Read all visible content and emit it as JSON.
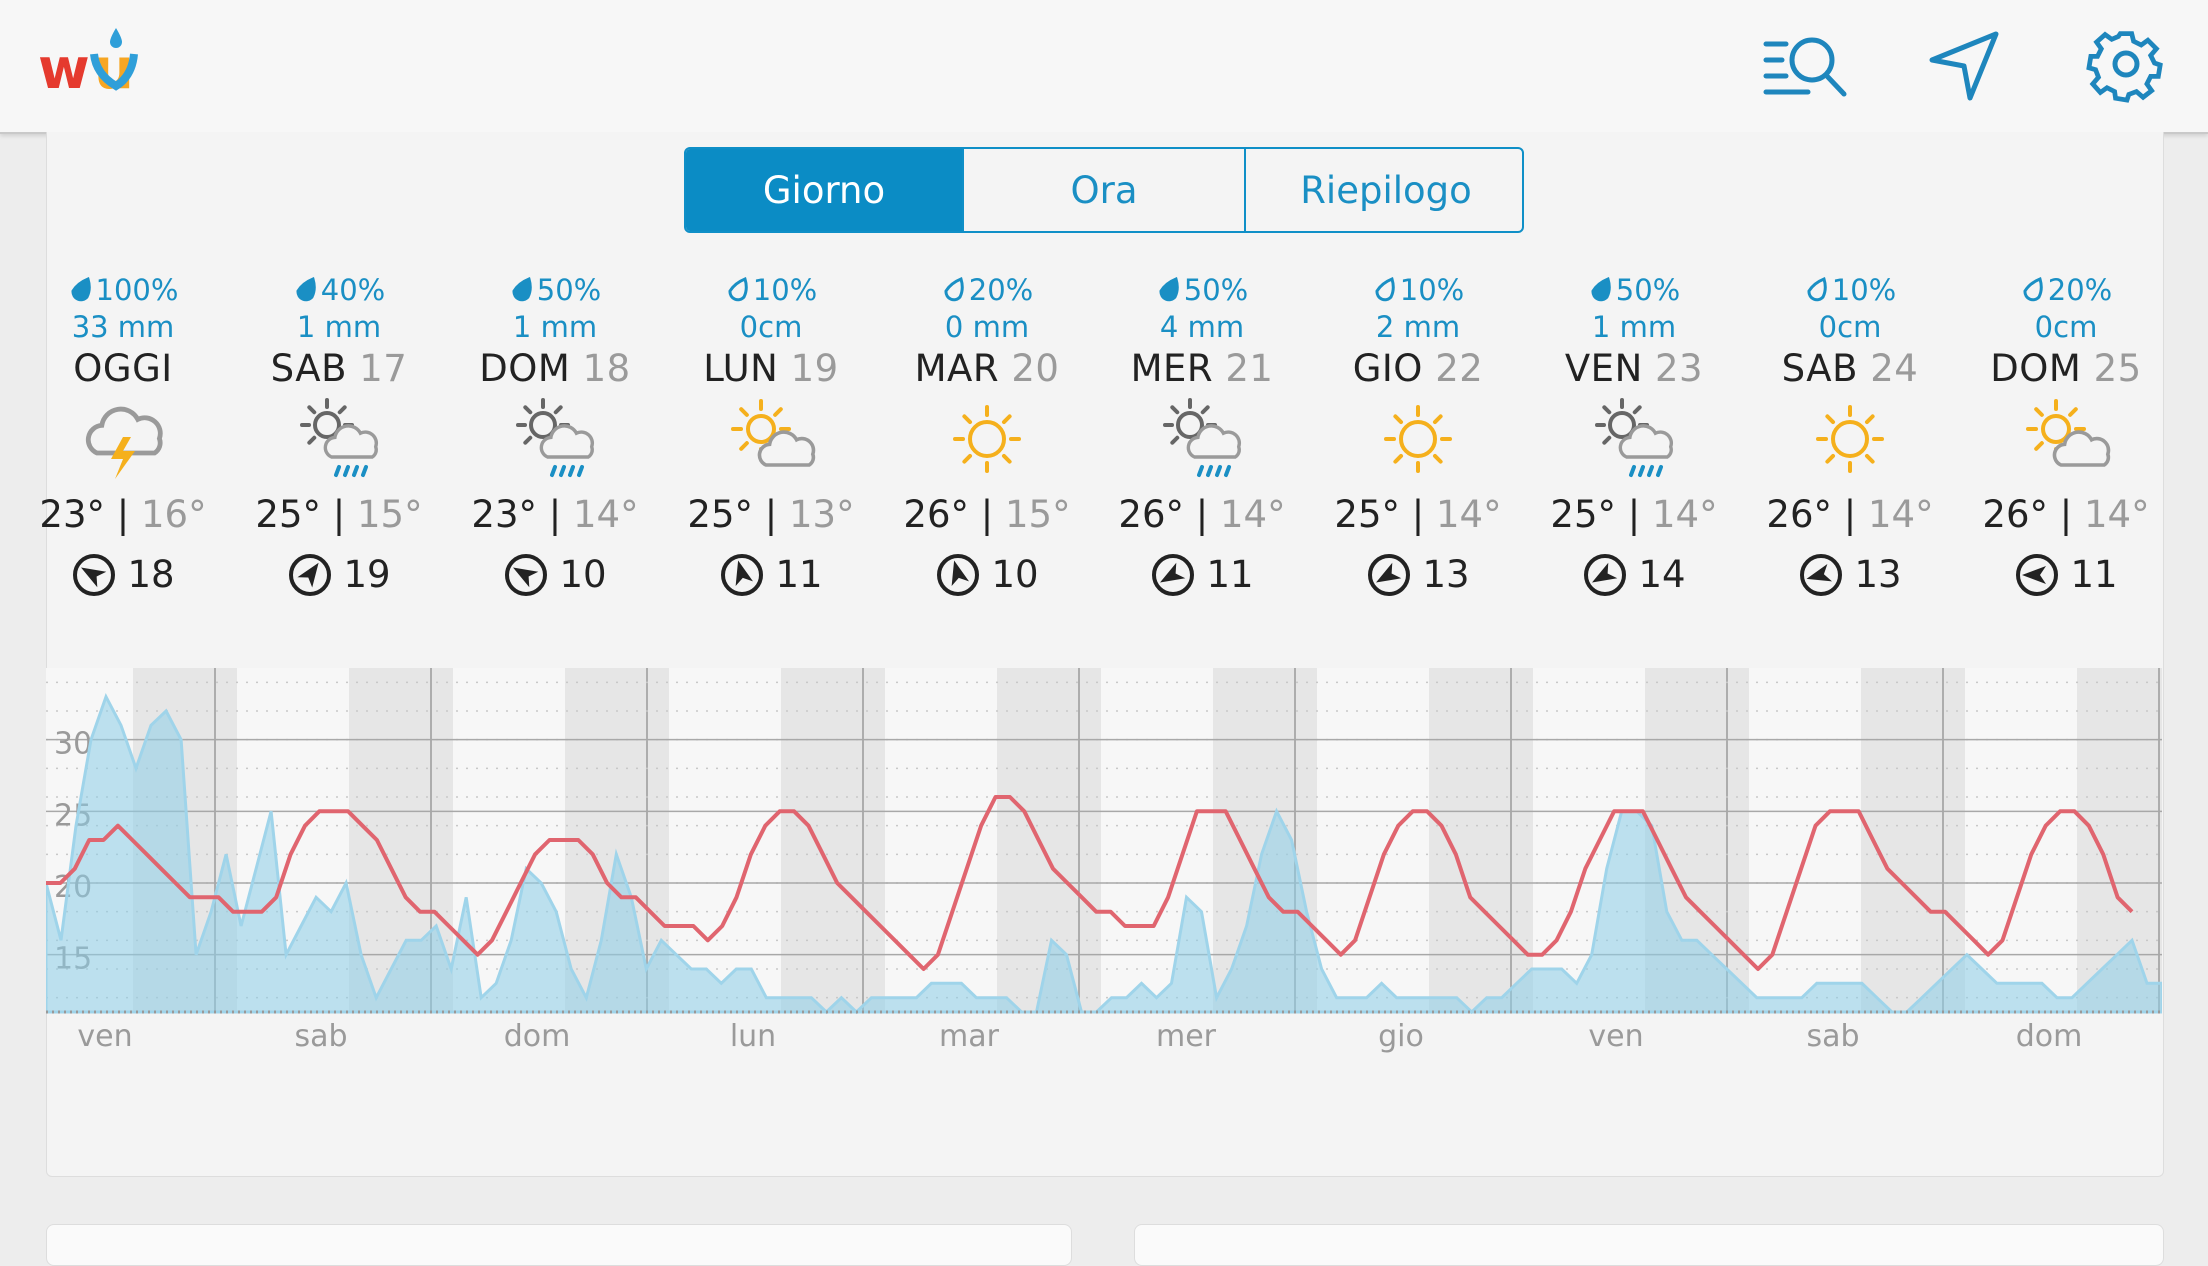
{
  "app": {
    "name": "Weather Underground",
    "logo_text": "wu"
  },
  "toolbar": {
    "icons": [
      "search-list-icon",
      "location-arrow-icon",
      "gear-icon"
    ]
  },
  "tabs": [
    {
      "label": "Giorno",
      "active": true
    },
    {
      "label": "Ora",
      "active": false
    },
    {
      "label": "Riepilogo",
      "active": false
    }
  ],
  "days": [
    {
      "precip": "100%",
      "amount": "33 mm",
      "name": "OGGI",
      "num": "",
      "icon": "thunderstorm-icon",
      "hi": "23°",
      "lo": "16°",
      "wind": "18",
      "wind_dir": 300,
      "drop_filled": true
    },
    {
      "precip": "40%",
      "amount": "1 mm",
      "name": "SAB",
      "num": "17",
      "icon": "sun-cloud-rain-icon",
      "hi": "25°",
      "lo": "15°",
      "wind": "19",
      "wind_dir": 35,
      "drop_filled": true
    },
    {
      "precip": "50%",
      "amount": "1 mm",
      "name": "DOM",
      "num": "18",
      "icon": "sun-cloud-rain-icon",
      "hi": "23°",
      "lo": "14°",
      "wind": "10",
      "wind_dir": 300,
      "drop_filled": true
    },
    {
      "precip": "10%",
      "amount": "0cm",
      "name": "LUN",
      "num": "19",
      "icon": "partly-cloudy-icon",
      "hi": "25°",
      "lo": "13°",
      "wind": "11",
      "wind_dir": 345,
      "drop_filled": false
    },
    {
      "precip": "20%",
      "amount": "0 mm",
      "name": "MAR",
      "num": "20",
      "icon": "sun-icon",
      "hi": "26°",
      "lo": "15°",
      "wind": "10",
      "wind_dir": 345,
      "drop_filled": false
    },
    {
      "precip": "50%",
      "amount": "4 mm",
      "name": "MER",
      "num": "21",
      "icon": "sun-cloud-rain-icon",
      "hi": "26°",
      "lo": "14°",
      "wind": "11",
      "wind_dir": 240,
      "drop_filled": true
    },
    {
      "precip": "10%",
      "amount": "2 mm",
      "name": "GIO",
      "num": "22",
      "icon": "sun-icon",
      "hi": "25°",
      "lo": "14°",
      "wind": "13",
      "wind_dir": 240,
      "drop_filled": false
    },
    {
      "precip": "50%",
      "amount": "1 mm",
      "name": "VEN",
      "num": "23",
      "icon": "sun-cloud-rain-icon",
      "hi": "25°",
      "lo": "14°",
      "wind": "14",
      "wind_dir": 240,
      "drop_filled": true
    },
    {
      "precip": "10%",
      "amount": "0cm",
      "name": "SAB",
      "num": "24",
      "icon": "sun-icon",
      "hi": "26°",
      "lo": "14°",
      "wind": "13",
      "wind_dir": 255,
      "drop_filled": false
    },
    {
      "precip": "20%",
      "amount": "0cm",
      "name": "DOM",
      "num": "25",
      "icon": "partly-cloudy-icon",
      "hi": "26°",
      "lo": "14°",
      "wind": "11",
      "wind_dir": 270,
      "drop_filled": false
    }
  ],
  "chart_data": {
    "type": "line",
    "y_ticks": [
      "30",
      "25",
      "20",
      "15"
    ],
    "ylim": [
      11,
      35
    ],
    "x_labels": [
      "ven",
      "sab",
      "dom",
      "lun",
      "mar",
      "mer",
      "gio",
      "ven",
      "sab",
      "dom"
    ],
    "series": [
      {
        "name": "",
        "kind": "temperature",
        "color": "#e0656f",
        "values": [
          20,
          20,
          21,
          23,
          23,
          24,
          23,
          22,
          21,
          20,
          19,
          19,
          19,
          18,
          18,
          18,
          19,
          22,
          24,
          25,
          25,
          25,
          24,
          23,
          21,
          19,
          18,
          18,
          17,
          16,
          15,
          16,
          18,
          20,
          22,
          23,
          23,
          23,
          22,
          20,
          19,
          19,
          18,
          17,
          17,
          17,
          16,
          17,
          19,
          22,
          24,
          25,
          25,
          24,
          22,
          20,
          19,
          18,
          17,
          16,
          15,
          14,
          15,
          18,
          21,
          24,
          26,
          26,
          25,
          23,
          21,
          20,
          19,
          18,
          18,
          17,
          17,
          17,
          19,
          22,
          25,
          25,
          25,
          23,
          21,
          19,
          18,
          18,
          17,
          16,
          15,
          16,
          19,
          22,
          24,
          25,
          25,
          24,
          22,
          19,
          18,
          17,
          16,
          15,
          15,
          16,
          18,
          21,
          23,
          25,
          25,
          25,
          23,
          21,
          19,
          18,
          17,
          16,
          15,
          14,
          15,
          18,
          21,
          24,
          25,
          25,
          25,
          23,
          21,
          20,
          19,
          18,
          18,
          17,
          16,
          15,
          16,
          19,
          22,
          24,
          25,
          25,
          24,
          22,
          19,
          18
        ]
      },
      {
        "name": "",
        "kind": "precipitation",
        "color": "#a8d8ec",
        "values": [
          20,
          16,
          24,
          30,
          33,
          31,
          28,
          31,
          32,
          30,
          15,
          18,
          22,
          17,
          21,
          25,
          15,
          17,
          19,
          18,
          20,
          15,
          12,
          14,
          16,
          16,
          17,
          14,
          19,
          12,
          13,
          16,
          21,
          20,
          18,
          14,
          12,
          16,
          22,
          19,
          14,
          16,
          15,
          14,
          14,
          13,
          14,
          14,
          12,
          12,
          12,
          12,
          11,
          12,
          11,
          12,
          12,
          12,
          12,
          13,
          13,
          13,
          12,
          12,
          12,
          11,
          11,
          16,
          15,
          11,
          11,
          12,
          12,
          13,
          12,
          13,
          19,
          18,
          12,
          14,
          17,
          22,
          25,
          23,
          18,
          14,
          12,
          12,
          12,
          13,
          12,
          12,
          12,
          12,
          12,
          11,
          12,
          12,
          13,
          14,
          14,
          14,
          13,
          15,
          21,
          25,
          25,
          24,
          18,
          16,
          16,
          15,
          14,
          13,
          12,
          12,
          12,
          12,
          13,
          13,
          13,
          13,
          12,
          11,
          11,
          12,
          13,
          14,
          15,
          14,
          13,
          13,
          13,
          13,
          12,
          12,
          13,
          14,
          15,
          16,
          13,
          13
        ]
      }
    ]
  }
}
